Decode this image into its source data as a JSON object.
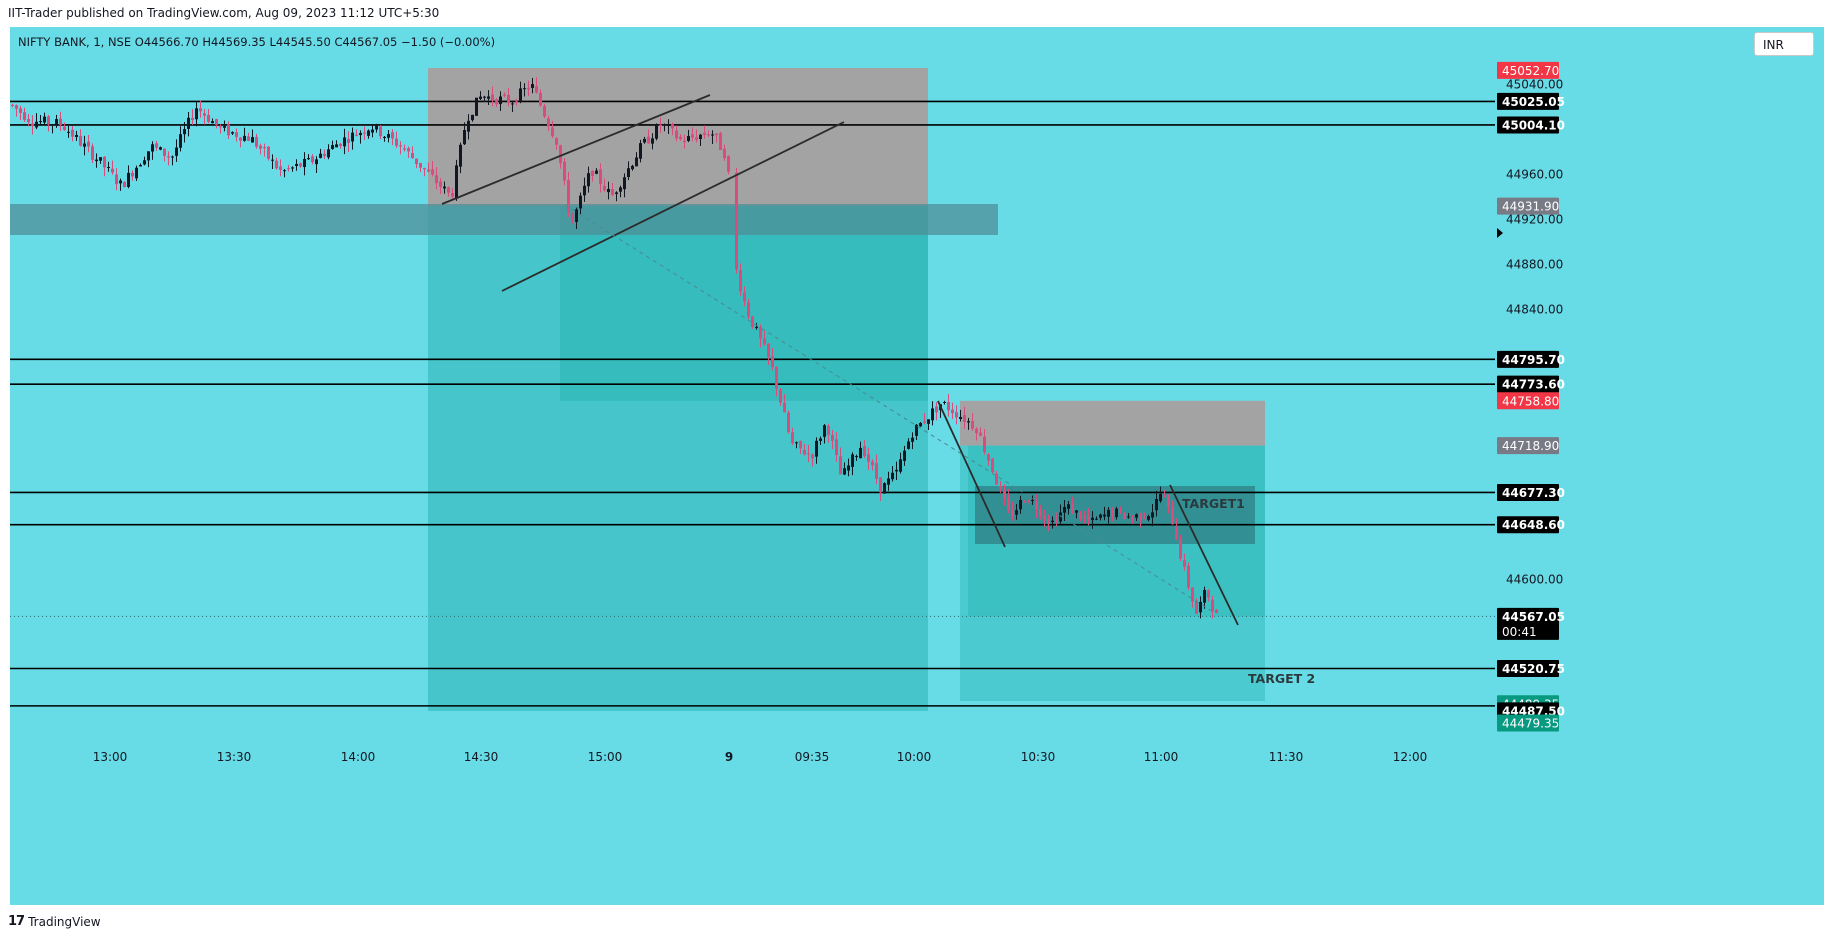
{
  "header": {
    "published": "IIT-Trader published on TradingView.com, Aug 09, 2023 11:12 UTC+5:30"
  },
  "legend": {
    "symbol_line": "NIFTY BANK, 1, NSE  O44566.70  H44569.35  L44545.50  C44567.05  −1.50 (−0.00%)"
  },
  "currency_button": "INR",
  "footer": {
    "brand": "TradingView",
    "logo": "17"
  },
  "chart_data": {
    "type": "candlestick",
    "title": "NIFTY BANK, 1, NSE",
    "ohlc_last": {
      "open": 44566.7,
      "high": 44569.35,
      "low": 44545.5,
      "close": 44567.05,
      "change": -1.5,
      "change_pct": -0.0
    },
    "x_ticks": [
      "13:00",
      "13:30",
      "14:00",
      "14:30",
      "15:00",
      "9",
      "09:35",
      "10:00",
      "10:30",
      "11:00",
      "11:30",
      "12:00"
    ],
    "y_ticks": [
      45040,
      44960,
      44920,
      44880,
      44840,
      44600
    ],
    "y_range": [
      44470,
      45070
    ],
    "horizontal_levels": [
      45025.05,
      45004.1,
      44795.7,
      44773.6,
      44677.3,
      44648.6,
      44520.75,
      44487.5
    ],
    "price_tags": [
      {
        "value": "45052.70",
        "color": "#f23645",
        "text_color": "#ffffff"
      },
      {
        "value": "45025.05",
        "color": "#000000",
        "text_color": "#ffffff"
      },
      {
        "value": "45004.10",
        "color": "#000000",
        "text_color": "#ffffff"
      },
      {
        "value": "44931.90",
        "color": "#787b86",
        "text_color": "#ffffff"
      },
      {
        "value": "44795.70",
        "color": "#000000",
        "text_color": "#ffffff"
      },
      {
        "value": "44773.60",
        "color": "#000000",
        "text_color": "#ffffff"
      },
      {
        "value": "44758.80",
        "color": "#f23645",
        "text_color": "#ffffff"
      },
      {
        "value": "44718.90",
        "color": "#787b86",
        "text_color": "#ffffff"
      },
      {
        "value": "44677.30",
        "color": "#000000",
        "text_color": "#ffffff"
      },
      {
        "value": "44648.60",
        "color": "#000000",
        "text_color": "#ffffff"
      },
      {
        "value": "44567.05",
        "color": "#000000",
        "text_color": "#ffffff",
        "sub": "00:41"
      },
      {
        "value": "44520.75",
        "color": "#000000",
        "text_color": "#ffffff"
      },
      {
        "value": "44489.35",
        "color": "#089981",
        "text_color": "#ffffff"
      },
      {
        "value": "44487.50",
        "color": "#000000",
        "text_color": "#ffffff"
      },
      {
        "value": "44479.35",
        "color": "#089981",
        "text_color": "#ffffff"
      }
    ],
    "annotations": [
      "TARGET1",
      "TARGET 2"
    ],
    "colors": {
      "background": "#67dce6",
      "candle_up": "#131722",
      "candle_down": "#d84d7b",
      "stop_zone": "#a3a3a3",
      "target_zone": "#2bb5b3",
      "support_zone": "#4f8f98"
    }
  }
}
